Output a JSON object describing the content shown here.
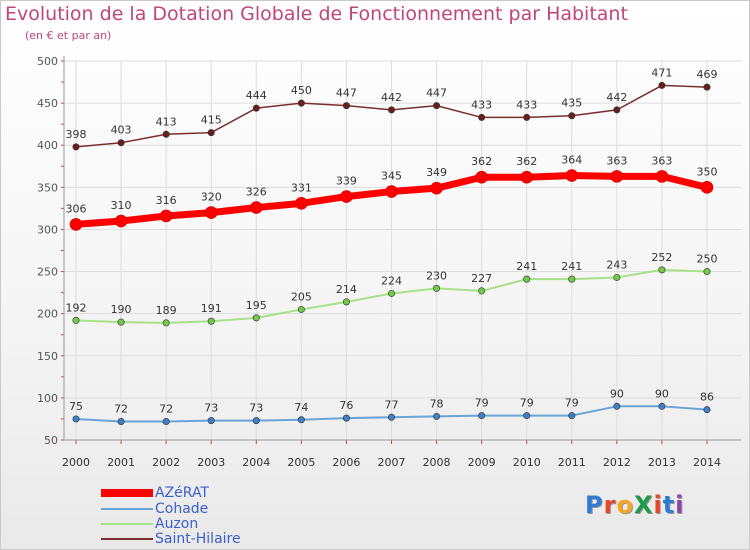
{
  "title": "Evolution de la Dotation Globale de Fonctionnement par Habitant",
  "subtitle": "(en € et par an)",
  "logo": "ProXiti",
  "chart_data": {
    "type": "line",
    "title": "Evolution de la Dotation Globale de Fonctionnement par Habitant",
    "ylabel": "(en € et par an)",
    "xlabel": "",
    "ylim": [
      50,
      500
    ],
    "yticks": [
      50,
      100,
      150,
      200,
      250,
      300,
      350,
      400,
      450,
      500
    ],
    "categories": [
      "2000",
      "2001",
      "2002",
      "2003",
      "2004",
      "2005",
      "2006",
      "2007",
      "2008",
      "2009",
      "2010",
      "2011",
      "2012",
      "2013",
      "2014"
    ],
    "grid": true,
    "legend_position": "bottom-left",
    "series": [
      {
        "name": "AZéRAT",
        "color": "#ff0000",
        "marker": "#ff0000",
        "width": 7,
        "values": [
          306,
          310,
          316,
          320,
          326,
          331,
          339,
          345,
          349,
          362,
          362,
          364,
          363,
          363,
          350
        ]
      },
      {
        "name": "Cohade",
        "color": "#6aa3d5",
        "marker": "#3f7fc4",
        "width": 2,
        "values": [
          75,
          72,
          72,
          73,
          73,
          74,
          76,
          77,
          78,
          79,
          79,
          79,
          90,
          90,
          86
        ]
      },
      {
        "name": "Auzon",
        "color": "#a9e08a",
        "marker": "#72c94a",
        "width": 2,
        "values": [
          192,
          190,
          189,
          191,
          195,
          205,
          214,
          224,
          230,
          227,
          241,
          241,
          243,
          252,
          250
        ]
      },
      {
        "name": "Saint-Hilaire",
        "color": "#7a2e2e",
        "marker": "#6a1f1f",
        "width": 1.5,
        "values": [
          398,
          403,
          413,
          415,
          444,
          450,
          447,
          442,
          447,
          433,
          433,
          435,
          442,
          471,
          469
        ]
      }
    ]
  }
}
